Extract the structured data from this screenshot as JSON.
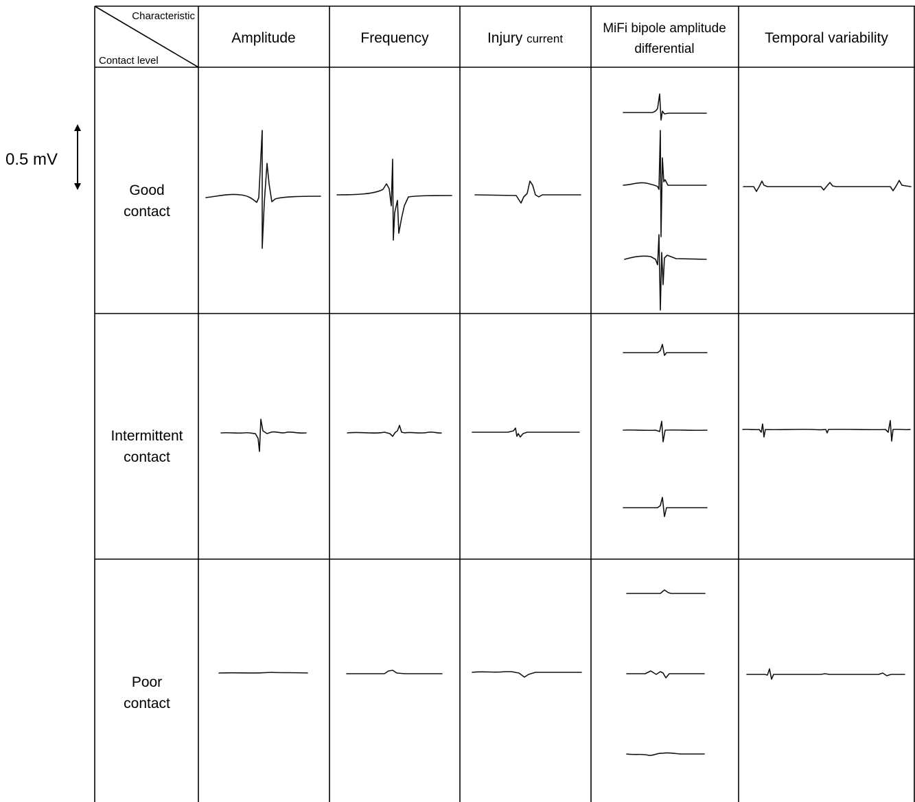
{
  "scale_bar": {
    "label": "0.5 mV"
  },
  "corner_header": {
    "top_label": "Characteristic",
    "bottom_label": "Contact level"
  },
  "columns": [
    {
      "id": "amplitude",
      "label_lines": [
        "Amplitude"
      ]
    },
    {
      "id": "frequency",
      "label_lines": [
        "Frequency"
      ]
    },
    {
      "id": "injury",
      "label_main": "Injury",
      "label_small": "current"
    },
    {
      "id": "mifi",
      "label_lines": [
        "MiFi bipole amplitude",
        "differential"
      ]
    },
    {
      "id": "temporal",
      "label_lines": [
        "Temporal variability"
      ]
    }
  ],
  "rows": [
    {
      "id": "good",
      "label_lines": [
        "Good",
        "contact"
      ]
    },
    {
      "id": "intermittent",
      "label_lines": [
        "Intermittent",
        "contact"
      ]
    },
    {
      "id": "poor",
      "label_lines": [
        "Poor",
        "contact"
      ]
    }
  ]
}
